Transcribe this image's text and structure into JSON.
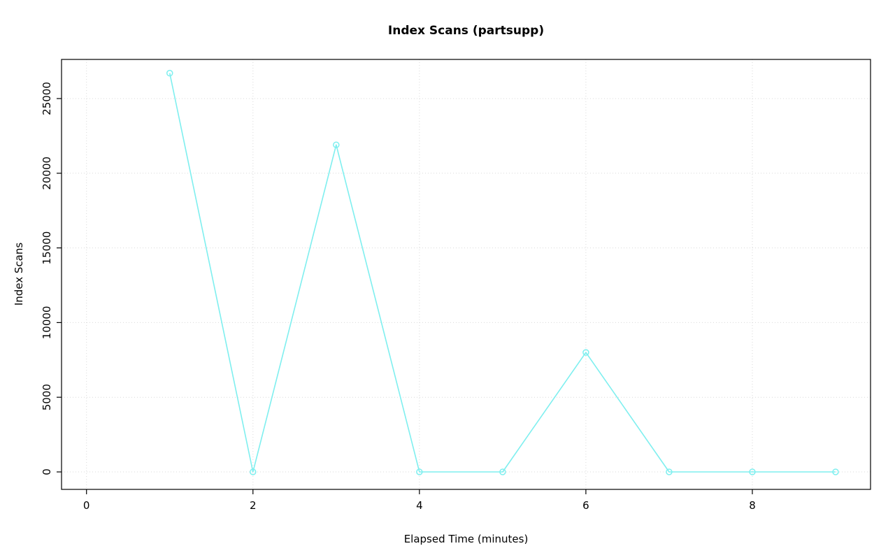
{
  "chart_data": {
    "type": "line",
    "title": "Index Scans (partsupp)",
    "xlabel": "Elapsed Time (minutes)",
    "ylabel": "Index Scans",
    "x": [
      1,
      2,
      3,
      4,
      5,
      6,
      7,
      8,
      9
    ],
    "values": [
      26700,
      0,
      21900,
      0,
      0,
      8000,
      0,
      0,
      0
    ],
    "xticks": [
      0,
      2,
      4,
      6,
      8
    ],
    "yticks": [
      0,
      5000,
      10000,
      15000,
      20000,
      25000
    ],
    "xlim": [
      -0.3,
      9.42
    ],
    "ylim": [
      -1170,
      27620
    ],
    "grid": true,
    "legend_position": "none",
    "line_color": "#7FEFEF",
    "marker": "circle-open",
    "grid_color": "#D9D9D9",
    "axis_color": "#000000",
    "background_color": "#FFFFFF"
  }
}
